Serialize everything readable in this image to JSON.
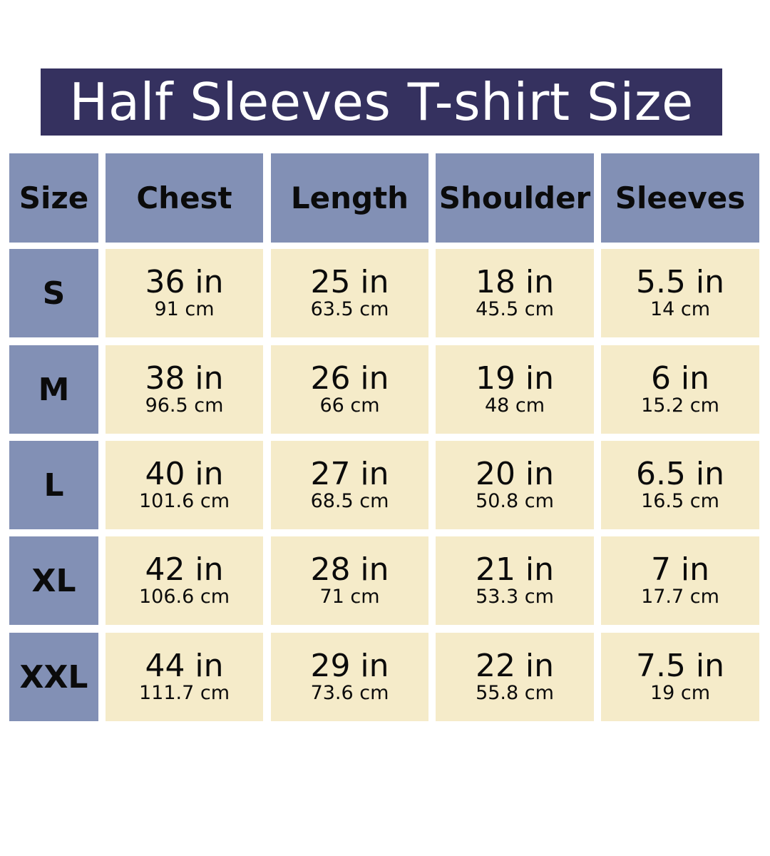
{
  "title": "Half Sleeves T-shirt Size",
  "colors": {
    "title_bg": "#35315f",
    "header_bg": "#8290b5",
    "value_bg": "#f5ebc9"
  },
  "headers": [
    "Size",
    "Chest",
    "Length",
    "Shoulder",
    "Sleeves"
  ],
  "rows": [
    {
      "size": "S",
      "values": [
        {
          "in": "36 in",
          "cm": "91 cm"
        },
        {
          "in": "25 in",
          "cm": "63.5 cm"
        },
        {
          "in": "18 in",
          "cm": "45.5 cm"
        },
        {
          "in": "5.5 in",
          "cm": "14 cm"
        }
      ]
    },
    {
      "size": "M",
      "values": [
        {
          "in": "38 in",
          "cm": "96.5 cm"
        },
        {
          "in": "26 in",
          "cm": "66 cm"
        },
        {
          "in": "19 in",
          "cm": "48 cm"
        },
        {
          "in": "6 in",
          "cm": "15.2 cm"
        }
      ]
    },
    {
      "size": "L",
      "values": [
        {
          "in": "40 in",
          "cm": "101.6 cm"
        },
        {
          "in": "27 in",
          "cm": "68.5 cm"
        },
        {
          "in": "20 in",
          "cm": "50.8 cm"
        },
        {
          "in": "6.5 in",
          "cm": "16.5 cm"
        }
      ]
    },
    {
      "size": "XL",
      "values": [
        {
          "in": "42 in",
          "cm": "106.6 cm"
        },
        {
          "in": "28 in",
          "cm": "71 cm"
        },
        {
          "in": "21 in",
          "cm": "53.3 cm"
        },
        {
          "in": "7 in",
          "cm": "17.7 cm"
        }
      ]
    },
    {
      "size": "XXL",
      "values": [
        {
          "in": "44 in",
          "cm": "111.7 cm"
        },
        {
          "in": "29 in",
          "cm": "73.6 cm"
        },
        {
          "in": "22 in",
          "cm": "55.8 cm"
        },
        {
          "in": "7.5 in",
          "cm": "19 cm"
        }
      ]
    }
  ]
}
